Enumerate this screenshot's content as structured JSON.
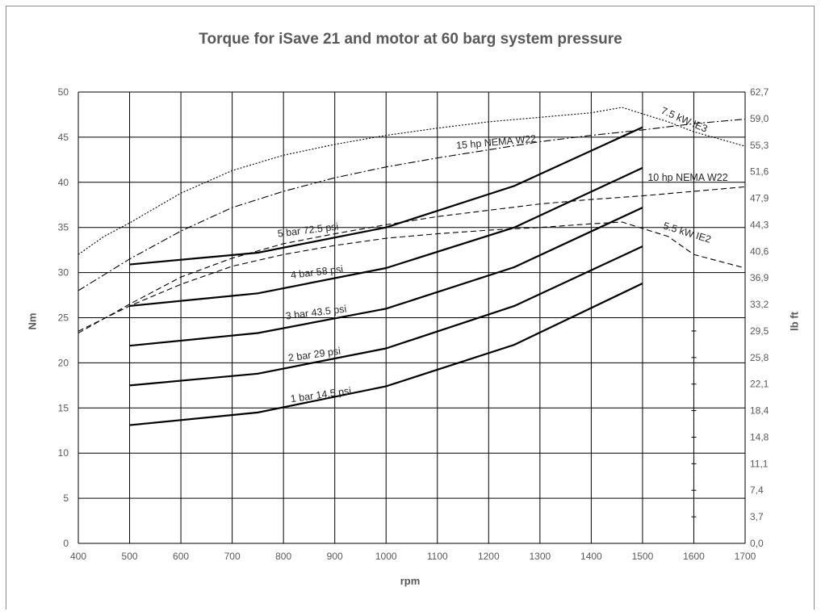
{
  "chart_data": {
    "type": "line",
    "title": "Torque for iSave 21 and motor at 60 barg system pressure",
    "xlabel": "rpm",
    "ylabel": "Nm",
    "y2label": "lb ft",
    "xlim": [
      400,
      1700
    ],
    "ylim": [
      0,
      50
    ],
    "x_ticks": [
      400,
      500,
      600,
      700,
      800,
      900,
      1000,
      1100,
      1200,
      1300,
      1400,
      1500,
      1600,
      1700
    ],
    "y_ticks": [
      0,
      5,
      10,
      15,
      20,
      25,
      30,
      35,
      40,
      45,
      50
    ],
    "y2_tick_labels": [
      "0,0",
      "3,7",
      "7,4",
      "11,1",
      "14,8",
      "18,4",
      "22,1",
      "25,8",
      "29,5",
      "33,2",
      "36,9",
      "40,6",
      "44,3",
      "47,9",
      "51,6",
      "55,3",
      "59,0",
      "62,7"
    ],
    "grid": true,
    "series": [
      {
        "name": "1 bar 14.5 psi",
        "style": "solid",
        "x": [
          500,
          750,
          1000,
          1250,
          1500
        ],
        "y": [
          13.1,
          14.5,
          17.4,
          22.0,
          28.8
        ]
      },
      {
        "name": "2 bar 29 psi",
        "style": "solid",
        "x": [
          500,
          750,
          1000,
          1250,
          1500
        ],
        "y": [
          17.5,
          18.8,
          21.6,
          26.3,
          32.9
        ]
      },
      {
        "name": "3 bar 43.5 psi",
        "style": "solid",
        "x": [
          500,
          750,
          1000,
          1250,
          1500
        ],
        "y": [
          21.9,
          23.3,
          26.0,
          30.6,
          37.2
        ]
      },
      {
        "name": "4 bar 58 psi",
        "style": "solid",
        "x": [
          500,
          750,
          1000,
          1250,
          1500
        ],
        "y": [
          26.3,
          27.7,
          30.5,
          35.0,
          41.6
        ]
      },
      {
        "name": "5 bar 72.5 psi",
        "style": "solid",
        "x": [
          500,
          750,
          1000,
          1250,
          1500
        ],
        "y": [
          30.9,
          32.2,
          35.0,
          39.6,
          46.1
        ]
      },
      {
        "name": "5.5 kW IE2",
        "style": "dashed",
        "x": [
          400,
          500,
          600,
          700,
          800,
          900,
          1000,
          1100,
          1200,
          1300,
          1400,
          1460,
          1550,
          1600,
          1700
        ],
        "y": [
          23.5,
          26.3,
          28.7,
          30.7,
          32.0,
          33.0,
          33.8,
          34.3,
          34.7,
          35.0,
          35.4,
          35.6,
          34.0,
          32.0,
          30.5
        ]
      },
      {
        "name": "10 hp NEMA W22",
        "style": "dashed",
        "x": [
          400,
          500,
          600,
          700,
          800,
          900,
          1000,
          1100,
          1200,
          1300,
          1400,
          1500,
          1600,
          1700
        ],
        "y": [
          23.3,
          26.5,
          29.5,
          31.6,
          33.2,
          34.3,
          35.3,
          36.2,
          36.9,
          37.6,
          38.1,
          38.5,
          39.0,
          39.5
        ]
      },
      {
        "name": "15 hp NEMA W22",
        "style": "dashdot",
        "x": [
          400,
          500,
          600,
          700,
          800,
          900,
          1000,
          1100,
          1200,
          1300,
          1400,
          1500,
          1600,
          1700
        ],
        "y": [
          28.0,
          31.5,
          34.6,
          37.2,
          39.0,
          40.5,
          41.7,
          42.7,
          43.6,
          44.5,
          45.2,
          45.8,
          46.5,
          47.0
        ]
      },
      {
        "name": "7.5 kW IE3",
        "style": "dotted",
        "x": [
          400,
          450,
          500,
          600,
          700,
          800,
          900,
          1000,
          1100,
          1200,
          1300,
          1400,
          1460,
          1550,
          1600,
          1700
        ],
        "y": [
          32.0,
          34.0,
          35.5,
          38.8,
          41.3,
          43.0,
          44.2,
          45.2,
          46.0,
          46.7,
          47.2,
          47.7,
          48.3,
          46.7,
          45.6,
          44.0
        ]
      }
    ]
  }
}
